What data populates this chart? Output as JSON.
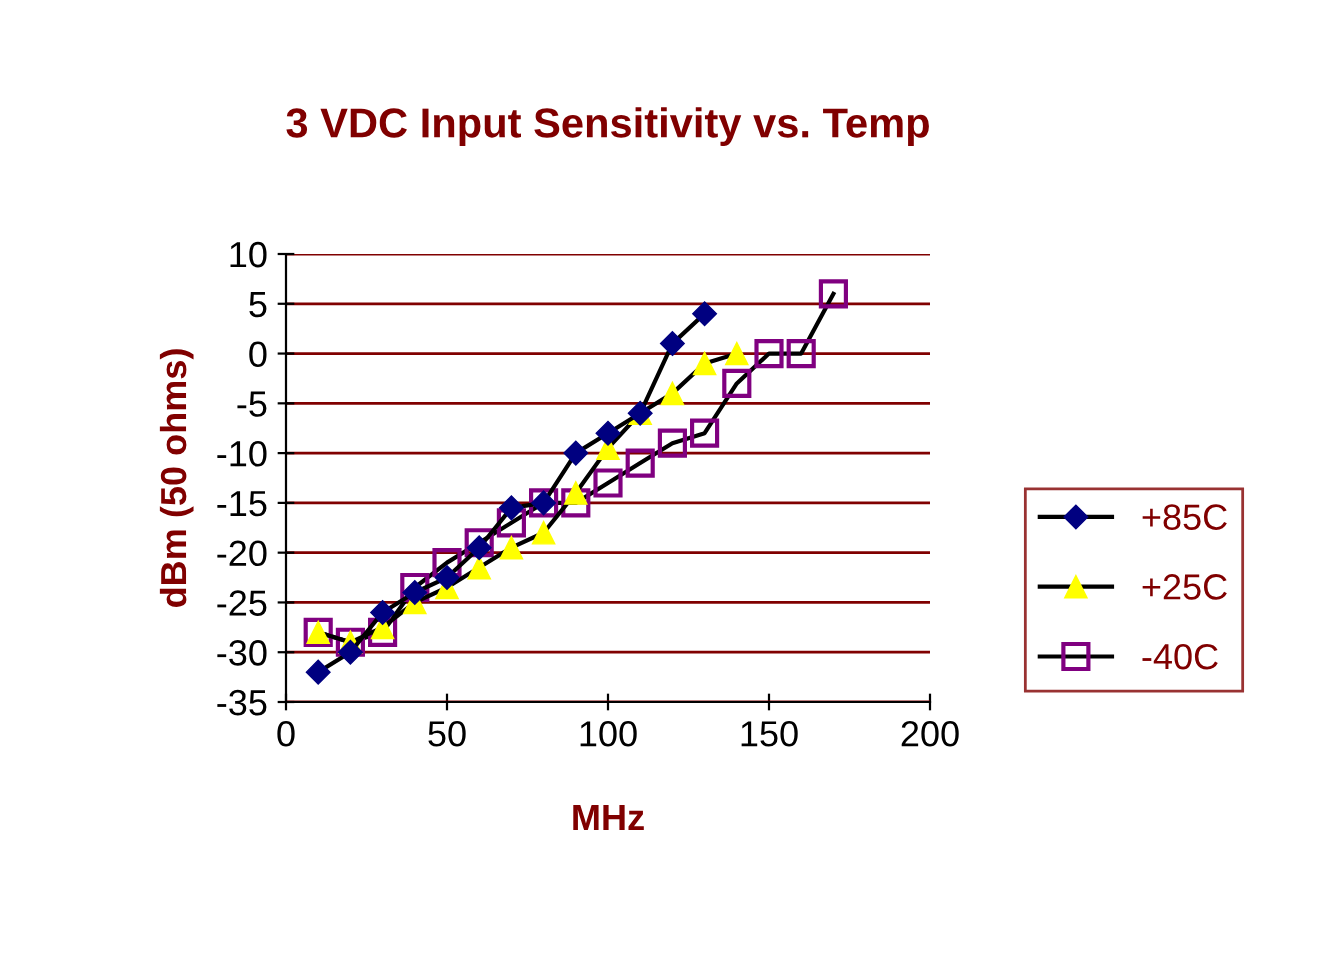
{
  "chart_data": {
    "type": "line",
    "title": "3 VDC Input Sensitivity vs. Temp",
    "xlabel": "MHz",
    "ylabel": "dBm (50 ohms)",
    "xlim": [
      0,
      200
    ],
    "xticks": [
      0,
      50,
      100,
      150,
      200
    ],
    "ylim": [
      -35,
      10
    ],
    "yticks": [
      -35,
      -30,
      -25,
      -20,
      -15,
      -10,
      -5,
      0,
      5,
      10
    ],
    "grid": "y",
    "legend": "right",
    "series": [
      {
        "name": "+85C",
        "color": "#000080",
        "marker": "diamond",
        "x": [
          10,
          20,
          30,
          40,
          50,
          60,
          70,
          80,
          90,
          100,
          110,
          120,
          130
        ],
        "values": [
          -32,
          -30,
          -26,
          -24,
          -22.5,
          -19.5,
          -15.5,
          -15,
          -10,
          -8,
          -6,
          1,
          4
        ]
      },
      {
        "name": "+25C",
        "color": "#ffff00",
        "marker": "triangle",
        "x": [
          10,
          20,
          30,
          40,
          50,
          60,
          70,
          80,
          90,
          100,
          110,
          120,
          130,
          140
        ],
        "values": [
          -28,
          -29,
          -27.5,
          -25,
          -23.5,
          -21.5,
          -19.5,
          -18,
          -14,
          -9.5,
          -6,
          -4,
          -1,
          0
        ]
      },
      {
        "name": "-40C",
        "color": "#800080",
        "marker": "square",
        "x": [
          10,
          20,
          30,
          40,
          50,
          60,
          70,
          80,
          90,
          100,
          110,
          120,
          130,
          140,
          150,
          160,
          170
        ],
        "values": [
          -28,
          -29,
          -28,
          -23.5,
          -21,
          -19,
          -17,
          -15,
          -15,
          -13,
          -11,
          -9,
          -8,
          -3,
          0,
          0,
          6
        ]
      }
    ]
  }
}
